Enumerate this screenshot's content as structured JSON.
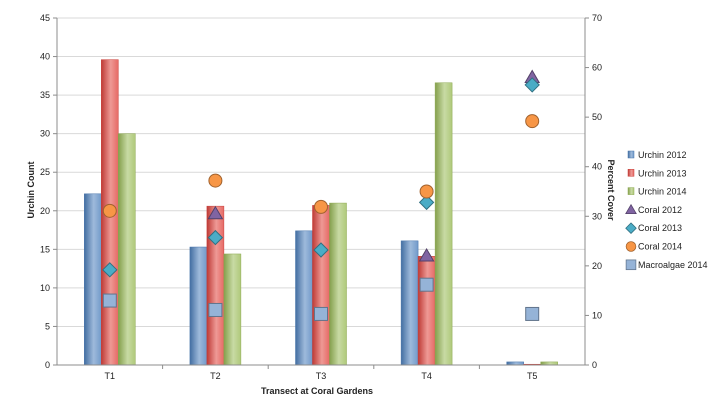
{
  "chart_data": {
    "type": "bar",
    "categories": [
      "T1",
      "T2",
      "T3",
      "T4",
      "T5"
    ],
    "xlabel": "Transect at Coral Gardens",
    "ylabel": "Urchin Count",
    "y2label": "Percent Cover",
    "ylim": [
      0,
      45
    ],
    "y2lim": [
      0,
      70
    ],
    "yticks": [
      "0",
      "5",
      "10",
      "15",
      "20",
      "25",
      "30",
      "35",
      "40",
      "45"
    ],
    "y2ticks": [
      "0",
      "10",
      "20",
      "30",
      "40",
      "50",
      "60",
      "70"
    ],
    "grid": true,
    "legend_position": "right",
    "bar_series": [
      {
        "name": "Urchin 2012",
        "axis": "left",
        "color": "#4f81bd",
        "values": [
          22.2,
          15.3,
          17.4,
          16.1,
          0.4
        ]
      },
      {
        "name": "Urchin 2013",
        "axis": "left",
        "color": "#e0453f",
        "values": [
          39.6,
          20.6,
          20.7,
          14.1,
          0.1
        ]
      },
      {
        "name": "Urchin 2014",
        "axis": "left",
        "color": "#9bbb59",
        "values": [
          30.0,
          14.4,
          21.0,
          36.6,
          0.4
        ]
      }
    ],
    "marker_series": [
      {
        "name": "Coral 2012",
        "axis": "right",
        "marker": "triangle",
        "color": "#8064a2",
        "values": [
          null,
          30.5,
          null,
          22.0,
          58.0
        ]
      },
      {
        "name": "Coral 2013",
        "axis": "right",
        "marker": "diamond",
        "color": "#4bacc6",
        "values": [
          19.2,
          25.7,
          23.2,
          32.8,
          56.5
        ]
      },
      {
        "name": "Coral 2014",
        "axis": "right",
        "marker": "circle",
        "color": "#f79646",
        "values": [
          31.1,
          37.2,
          31.9,
          35.0,
          49.2
        ]
      },
      {
        "name": "Macroalgae 2014",
        "axis": "right",
        "marker": "square",
        "color": "#95b3d7",
        "values": [
          13.0,
          11.1,
          10.3,
          16.2,
          10.3
        ]
      }
    ]
  }
}
